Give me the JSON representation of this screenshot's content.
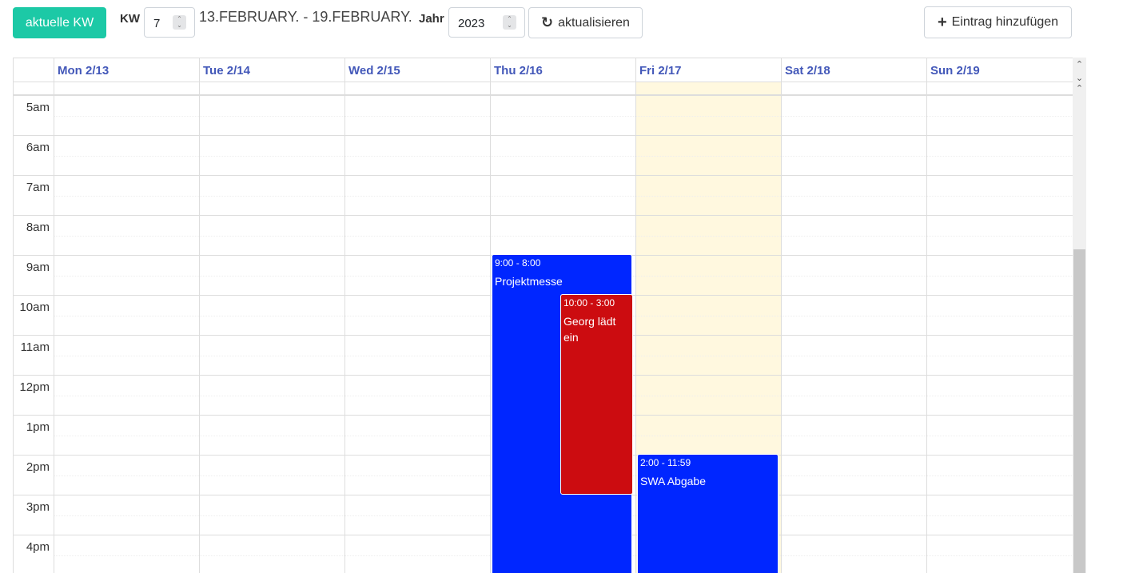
{
  "toolbar": {
    "today_label": "aktuelle KW",
    "kw_label": "KW",
    "kw_value": "7",
    "range_text": "13.FEBRUARY. - 19.FEBRUARY.",
    "year_label": "Jahr",
    "year_value": "2023",
    "refresh_label": "aktualisieren",
    "add_label": "Eintrag hinzufügen"
  },
  "days": [
    "Mon 2/13",
    "Tue 2/14",
    "Wed 2/15",
    "Thu 2/16",
    "Fri 2/17",
    "Sat 2/18",
    "Sun 2/19"
  ],
  "hours": [
    "5am",
    "6am",
    "7am",
    "8am",
    "9am",
    "10am",
    "11am",
    "12pm",
    "1pm",
    "2pm",
    "3pm",
    "4pm"
  ],
  "events": [
    {
      "time": "9:00 - 8:00",
      "title": "Projektmesse",
      "color": "#0026ff"
    },
    {
      "time": "10:00 - 3:00",
      "title": "Georg lädt ein",
      "color": "#cc0c10"
    },
    {
      "time": "2:00 - 11:59",
      "title": "SWA Abgabe",
      "color": "#0026ff"
    }
  ],
  "colors": {
    "accent": "#1cc9a6",
    "today_bg": "#fff8df",
    "header_text": "#4358b9"
  },
  "icons": {
    "refresh": "refresh-icon",
    "add": "plus-icon"
  }
}
